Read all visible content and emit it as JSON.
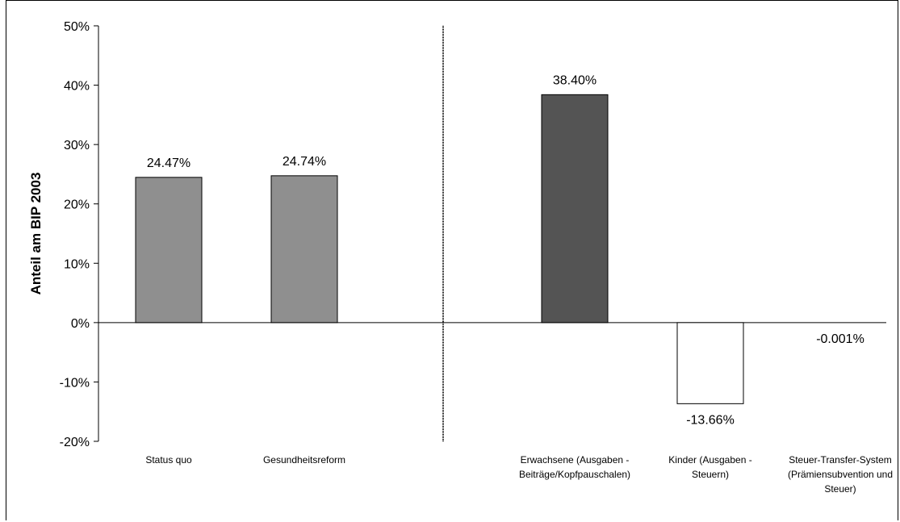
{
  "chart_data": {
    "type": "bar",
    "title": "",
    "xlabel": "",
    "ylabel": "Anteil am BIP 2003",
    "ylim": [
      -20,
      50
    ],
    "yticks": [
      50,
      40,
      30,
      20,
      10,
      0,
      -10,
      -20
    ],
    "ytick_labels": [
      "50%",
      "40%",
      "30%",
      "20%",
      "10%",
      "0%",
      "-10%",
      "-20%"
    ],
    "grid": false,
    "legend": "none",
    "separator": "dotted vertical line between group 1 and group 2",
    "categories": [
      {
        "lines": [
          "Status quo"
        ]
      },
      {
        "lines": [
          "Gesundheitsreform"
        ]
      },
      {
        "lines": [
          "Erwachsene (Ausgaben -",
          "Beiträge/Kopfpauschalen)"
        ]
      },
      {
        "lines": [
          "Kinder (Ausgaben -",
          "Steuern)"
        ]
      },
      {
        "lines": [
          "Steuer-Transfer-System",
          "(Prämiensubvention und",
          "Steuer)"
        ]
      }
    ],
    "values": [
      24.47,
      24.74,
      38.4,
      -13.66,
      -0.001
    ],
    "data_labels": [
      "24.47%",
      "24.74%",
      "38.40%",
      "-13.66%",
      "-0.001%"
    ],
    "colors": [
      "#8f8f8f",
      "#8f8f8f",
      "#545454",
      "#ffffff",
      "#ffffff"
    ]
  }
}
